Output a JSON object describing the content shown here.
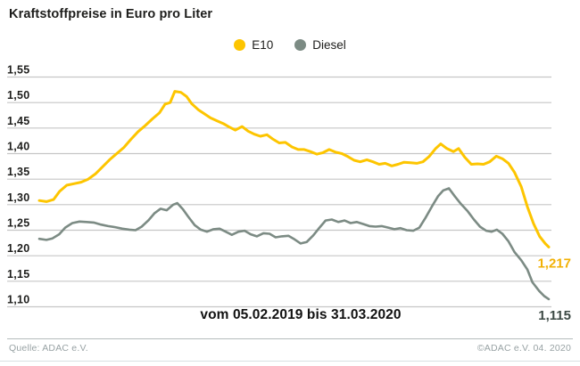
{
  "header": {
    "title": "Kraftstoffpreise in Euro pro Liter"
  },
  "caption": {
    "date_range": "vom 05.02.2019 bis 31.03.2020"
  },
  "footer": {
    "source_left": "Quelle: ADAC e.V.",
    "source_right": "©ADAC e.V.  04. 2020"
  },
  "colors": {
    "e10_line": "#fdc500",
    "e10_label": "#f2b105",
    "diesel_line": "#7c8b84",
    "diesel_label": "#3d4a45",
    "gridline": "#c6c6c6",
    "text": "#1d1d1b"
  },
  "chart_data": {
    "type": "line",
    "title": "Kraftstoffpreise in Euro pro Liter",
    "xlabel": "vom 05.02.2019 bis 31.03.2020",
    "ylabel": "Euro pro Liter",
    "x_range": {
      "from": "05.02.2019",
      "to": "31.03.2020"
    },
    "ylim": [
      1.1,
      1.55
    ],
    "grid": true,
    "legend_position": "top-center",
    "yticks": [
      {
        "label": "1,55",
        "value": 1.55
      },
      {
        "label": "1,50",
        "value": 1.5
      },
      {
        "label": "1,45",
        "value": 1.45
      },
      {
        "label": "1,40",
        "value": 1.4
      },
      {
        "label": "1,35",
        "value": 1.35
      },
      {
        "label": "1,30",
        "value": 1.3
      },
      {
        "label": "1,25",
        "value": 1.25
      },
      {
        "label": "1,20",
        "value": 1.2
      },
      {
        "label": "1,15",
        "value": 1.15
      },
      {
        "label": "1,10",
        "value": 1.1
      }
    ],
    "series": [
      {
        "name": "E10",
        "color": "#fdc500",
        "label_color": "#f2b105",
        "end_label": "1,217",
        "end_value": 1.217,
        "points": [
          [
            0.0,
            1.308
          ],
          [
            0.014,
            1.306
          ],
          [
            0.028,
            1.31
          ],
          [
            0.04,
            1.326
          ],
          [
            0.054,
            1.338
          ],
          [
            0.068,
            1.341
          ],
          [
            0.082,
            1.344
          ],
          [
            0.096,
            1.35
          ],
          [
            0.11,
            1.36
          ],
          [
            0.124,
            1.374
          ],
          [
            0.138,
            1.388
          ],
          [
            0.152,
            1.4
          ],
          [
            0.166,
            1.412
          ],
          [
            0.18,
            1.428
          ],
          [
            0.194,
            1.443
          ],
          [
            0.208,
            1.455
          ],
          [
            0.222,
            1.468
          ],
          [
            0.236,
            1.48
          ],
          [
            0.247,
            1.497
          ],
          [
            0.257,
            1.5
          ],
          [
            0.266,
            1.522
          ],
          [
            0.278,
            1.52
          ],
          [
            0.289,
            1.512
          ],
          [
            0.299,
            1.498
          ],
          [
            0.312,
            1.486
          ],
          [
            0.324,
            1.478
          ],
          [
            0.336,
            1.47
          ],
          [
            0.349,
            1.464
          ],
          [
            0.361,
            1.459
          ],
          [
            0.373,
            1.452
          ],
          [
            0.385,
            1.446
          ],
          [
            0.398,
            1.453
          ],
          [
            0.41,
            1.444
          ],
          [
            0.422,
            1.438
          ],
          [
            0.434,
            1.434
          ],
          [
            0.447,
            1.437
          ],
          [
            0.459,
            1.428
          ],
          [
            0.471,
            1.421
          ],
          [
            0.483,
            1.422
          ],
          [
            0.496,
            1.413
          ],
          [
            0.508,
            1.408
          ],
          [
            0.52,
            1.408
          ],
          [
            0.532,
            1.404
          ],
          [
            0.545,
            1.399
          ],
          [
            0.557,
            1.402
          ],
          [
            0.569,
            1.408
          ],
          [
            0.581,
            1.403
          ],
          [
            0.594,
            1.4
          ],
          [
            0.606,
            1.394
          ],
          [
            0.618,
            1.387
          ],
          [
            0.63,
            1.384
          ],
          [
            0.643,
            1.388
          ],
          [
            0.655,
            1.384
          ],
          [
            0.667,
            1.379
          ],
          [
            0.679,
            1.381
          ],
          [
            0.692,
            1.376
          ],
          [
            0.704,
            1.379
          ],
          [
            0.716,
            1.383
          ],
          [
            0.729,
            1.382
          ],
          [
            0.741,
            1.381
          ],
          [
            0.753,
            1.384
          ],
          [
            0.765,
            1.394
          ],
          [
            0.778,
            1.41
          ],
          [
            0.788,
            1.419
          ],
          [
            0.8,
            1.41
          ],
          [
            0.813,
            1.404
          ],
          [
            0.823,
            1.41
          ],
          [
            0.835,
            1.393
          ],
          [
            0.848,
            1.379
          ],
          [
            0.86,
            1.38
          ],
          [
            0.872,
            1.379
          ],
          [
            0.884,
            1.384
          ],
          [
            0.897,
            1.395
          ],
          [
            0.909,
            1.39
          ],
          [
            0.921,
            1.381
          ],
          [
            0.933,
            1.363
          ],
          [
            0.946,
            1.335
          ],
          [
            0.958,
            1.296
          ],
          [
            0.97,
            1.263
          ],
          [
            0.982,
            1.238
          ],
          [
            0.993,
            1.224
          ],
          [
            1.0,
            1.217
          ]
        ]
      },
      {
        "name": "Diesel",
        "color": "#7c8b84",
        "label_color": "#3d4a45",
        "end_label": "1,115",
        "end_value": 1.115,
        "points": [
          [
            0.0,
            1.233
          ],
          [
            0.014,
            1.231
          ],
          [
            0.026,
            1.234
          ],
          [
            0.039,
            1.242
          ],
          [
            0.051,
            1.255
          ],
          [
            0.065,
            1.264
          ],
          [
            0.079,
            1.267
          ],
          [
            0.093,
            1.266
          ],
          [
            0.107,
            1.265
          ],
          [
            0.121,
            1.261
          ],
          [
            0.135,
            1.258
          ],
          [
            0.149,
            1.256
          ],
          [
            0.163,
            1.253
          ],
          [
            0.177,
            1.251
          ],
          [
            0.189,
            1.25
          ],
          [
            0.201,
            1.257
          ],
          [
            0.214,
            1.269
          ],
          [
            0.226,
            1.283
          ],
          [
            0.238,
            1.292
          ],
          [
            0.25,
            1.289
          ],
          [
            0.263,
            1.3
          ],
          [
            0.271,
            1.303
          ],
          [
            0.282,
            1.291
          ],
          [
            0.292,
            1.277
          ],
          [
            0.305,
            1.26
          ],
          [
            0.317,
            1.251
          ],
          [
            0.329,
            1.247
          ],
          [
            0.342,
            1.252
          ],
          [
            0.354,
            1.253
          ],
          [
            0.366,
            1.247
          ],
          [
            0.378,
            1.241
          ],
          [
            0.391,
            1.247
          ],
          [
            0.403,
            1.249
          ],
          [
            0.415,
            1.242
          ],
          [
            0.427,
            1.238
          ],
          [
            0.44,
            1.244
          ],
          [
            0.452,
            1.243
          ],
          [
            0.464,
            1.236
          ],
          [
            0.476,
            1.238
          ],
          [
            0.489,
            1.239
          ],
          [
            0.501,
            1.232
          ],
          [
            0.513,
            1.224
          ],
          [
            0.525,
            1.227
          ],
          [
            0.538,
            1.24
          ],
          [
            0.55,
            1.255
          ],
          [
            0.562,
            1.269
          ],
          [
            0.574,
            1.271
          ],
          [
            0.587,
            1.266
          ],
          [
            0.599,
            1.269
          ],
          [
            0.611,
            1.264
          ],
          [
            0.623,
            1.266
          ],
          [
            0.636,
            1.262
          ],
          [
            0.648,
            1.258
          ],
          [
            0.66,
            1.257
          ],
          [
            0.672,
            1.258
          ],
          [
            0.685,
            1.255
          ],
          [
            0.697,
            1.252
          ],
          [
            0.709,
            1.254
          ],
          [
            0.721,
            1.25
          ],
          [
            0.734,
            1.249
          ],
          [
            0.746,
            1.255
          ],
          [
            0.758,
            1.274
          ],
          [
            0.771,
            1.297
          ],
          [
            0.783,
            1.317
          ],
          [
            0.793,
            1.328
          ],
          [
            0.804,
            1.332
          ],
          [
            0.816,
            1.316
          ],
          [
            0.828,
            1.301
          ],
          [
            0.841,
            1.287
          ],
          [
            0.853,
            1.271
          ],
          [
            0.865,
            1.257
          ],
          [
            0.877,
            1.249
          ],
          [
            0.888,
            1.247
          ],
          [
            0.898,
            1.251
          ],
          [
            0.909,
            1.243
          ],
          [
            0.921,
            1.228
          ],
          [
            0.933,
            1.207
          ],
          [
            0.946,
            1.191
          ],
          [
            0.958,
            1.173
          ],
          [
            0.968,
            1.148
          ],
          [
            0.981,
            1.131
          ],
          [
            0.991,
            1.121
          ],
          [
            1.0,
            1.115
          ]
        ]
      }
    ]
  }
}
